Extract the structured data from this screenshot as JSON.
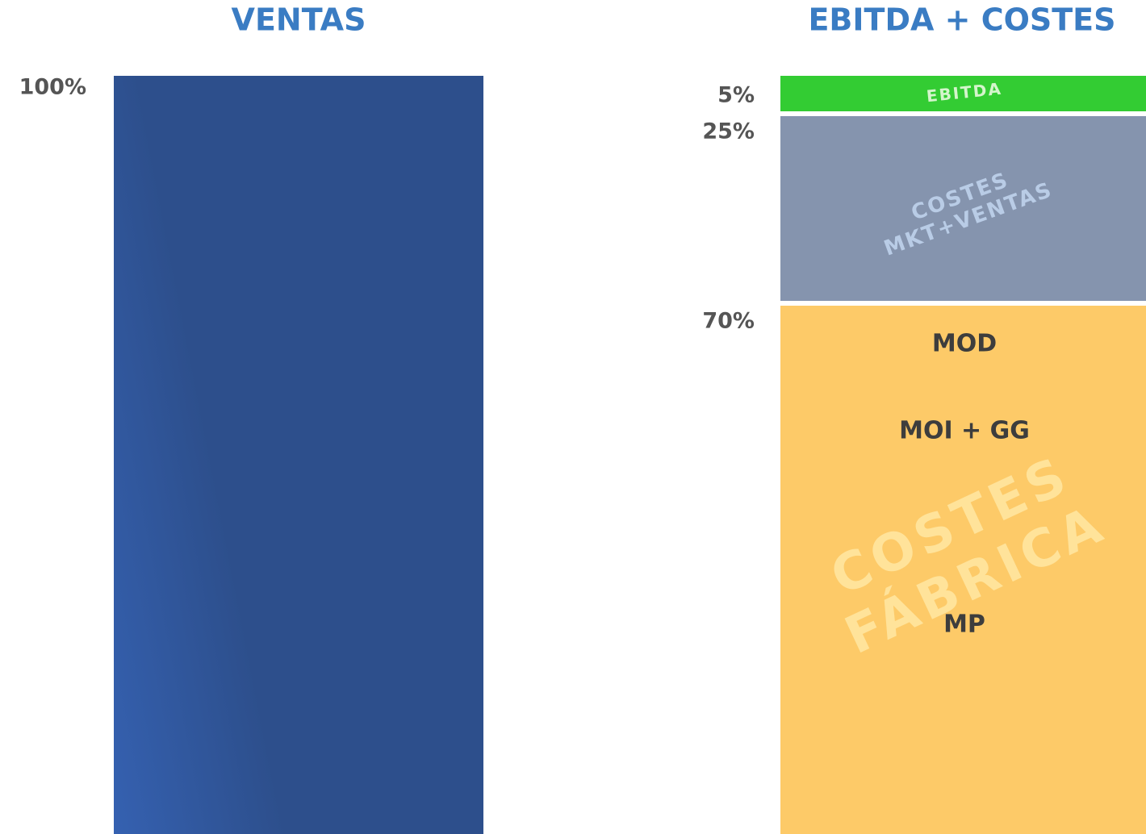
{
  "chart_data": [
    {
      "type": "bar",
      "title": "VENTAS",
      "values": [
        100
      ],
      "value_labels": [
        "100%"
      ],
      "color": "#2d4f8c",
      "ylim": [
        0,
        100
      ]
    },
    {
      "type": "stacked_bar",
      "title": "EBITDA + COSTES",
      "ylim": [
        0,
        100
      ],
      "series": [
        {
          "name_lines": [
            "EBITDA"
          ],
          "color": "#33cc33",
          "values": [
            5
          ],
          "value_labels": [
            "5%"
          ]
        },
        {
          "name_lines": [
            "COSTES",
            "MKT+VENTAS"
          ],
          "color": "#8594ae",
          "values": [
            25
          ],
          "value_labels": [
            "25%"
          ]
        },
        {
          "name_lines": [
            "COSTES",
            "FÁBRICA"
          ],
          "color": "#fdca68",
          "values": [
            70
          ],
          "value_labels": [
            "70%"
          ],
          "components": [
            "MOD",
            "MOI + GG",
            "MP"
          ]
        }
      ]
    }
  ]
}
